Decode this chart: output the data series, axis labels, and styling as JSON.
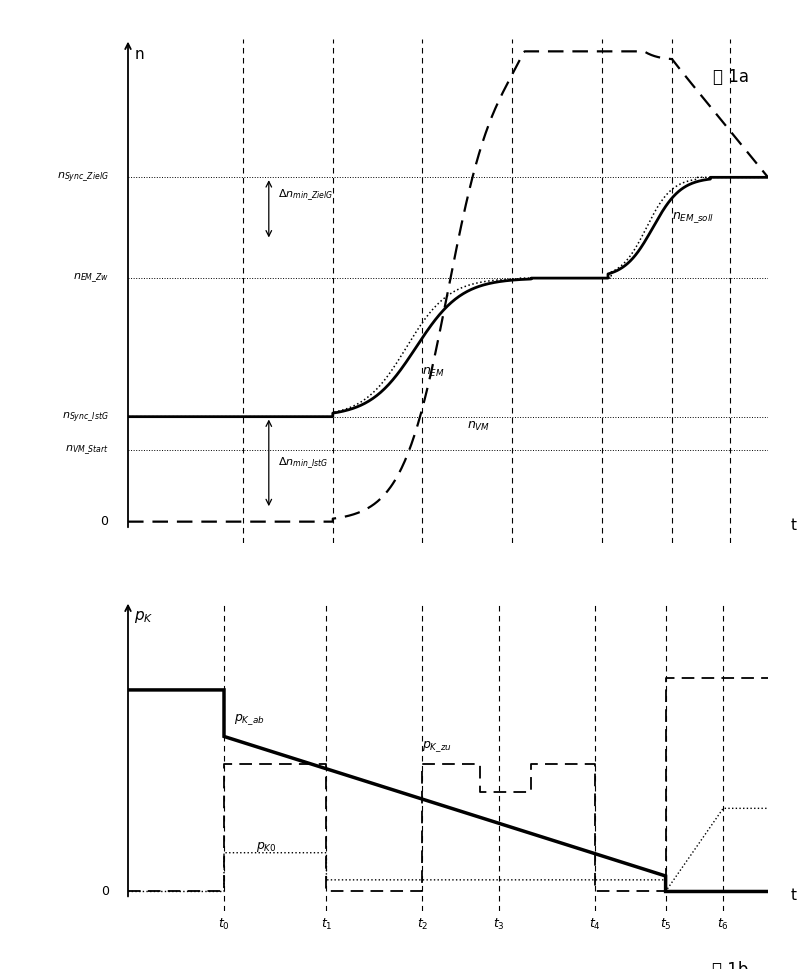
{
  "fig_width": 8.0,
  "fig_height": 9.69,
  "background_color": "#ffffff",
  "top_chart": {
    "xlim": [
      0,
      10
    ],
    "ylim": [
      -0.5,
      11.5
    ],
    "y_levels": {
      "n_sync_ZielG": 8.2,
      "n_EM_Zw": 5.8,
      "n_sync_IstG": 2.5,
      "n_VM_Start": 1.7
    },
    "vlines": [
      1.8,
      3.2,
      4.6,
      6.0,
      7.4,
      8.5,
      9.4
    ]
  },
  "bottom_chart": {
    "xlim": [
      0,
      10
    ],
    "ylim": [
      -0.5,
      7.5
    ],
    "y_levels": {
      "p_Kab_start": 5.2,
      "p_Kab_t0": 5.2,
      "p_Kab_t1": 4.0,
      "p_Kab_t2": 3.1,
      "p_Kab_t5_pre": 0.4,
      "p_Kzu_level": 3.3,
      "p_Kzu_high": 5.5,
      "p_K0_level": 1.0,
      "p_K0_low": 0.3
    },
    "t_positions": [
      1.5,
      3.1,
      4.6,
      5.8,
      7.3,
      8.4,
      9.3
    ],
    "t_labels": [
      "0",
      "1",
      "2",
      "3",
      "4",
      "5",
      "6"
    ]
  }
}
